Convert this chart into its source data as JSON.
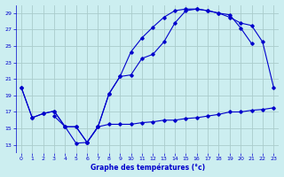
{
  "title": "Graphe des températures (°c)",
  "bg_color": "#cceef0",
  "grid_color": "#aacccc",
  "line_color": "#0000cc",
  "xlim": [
    -0.5,
    23.5
  ],
  "ylim": [
    12,
    30
  ],
  "yticks": [
    13,
    15,
    17,
    19,
    21,
    23,
    25,
    27,
    29
  ],
  "xticks": [
    0,
    1,
    2,
    3,
    4,
    5,
    6,
    7,
    8,
    9,
    10,
    11,
    12,
    13,
    14,
    15,
    16,
    17,
    18,
    19,
    20,
    21,
    22,
    23
  ],
  "curve1_x": [
    0,
    1,
    2,
    3,
    4,
    5,
    6,
    7,
    8,
    9,
    10,
    11,
    12,
    13,
    14,
    15,
    16,
    17,
    18,
    19,
    20,
    21,
    22,
    23
  ],
  "curve1_y": [
    20.0,
    16.3,
    16.8,
    17.1,
    15.2,
    13.2,
    13.3,
    15.2,
    19.2,
    21.3,
    24.3,
    26.0,
    27.3,
    28.5,
    29.3,
    29.5,
    29.5,
    29.3,
    29.0,
    28.8,
    27.2,
    25.3,
    null,
    null
  ],
  "curve2_x": [
    0,
    1,
    2,
    3,
    4,
    5,
    6,
    7,
    8,
    9,
    10,
    11,
    12,
    13,
    14,
    15,
    16,
    17,
    18,
    19,
    20,
    21,
    22,
    23
  ],
  "curve2_y": [
    20.0,
    16.3,
    16.8,
    17.1,
    15.2,
    15.2,
    13.3,
    15.2,
    19.2,
    21.3,
    21.5,
    23.5,
    24.0,
    25.5,
    27.8,
    29.3,
    29.5,
    29.3,
    29.0,
    28.5,
    27.8,
    27.5,
    25.5,
    20.0
  ],
  "curve3_x": [
    3,
    4,
    5,
    6,
    7,
    8,
    9,
    10,
    11,
    12,
    13,
    14,
    15,
    16,
    17,
    18,
    19,
    20,
    21,
    22,
    23
  ],
  "curve3_y": [
    16.5,
    15.2,
    15.2,
    13.3,
    15.2,
    15.5,
    15.5,
    15.5,
    15.7,
    15.8,
    16.0,
    16.0,
    16.2,
    16.3,
    16.5,
    16.7,
    17.0,
    17.0,
    17.2,
    17.3,
    17.5
  ]
}
